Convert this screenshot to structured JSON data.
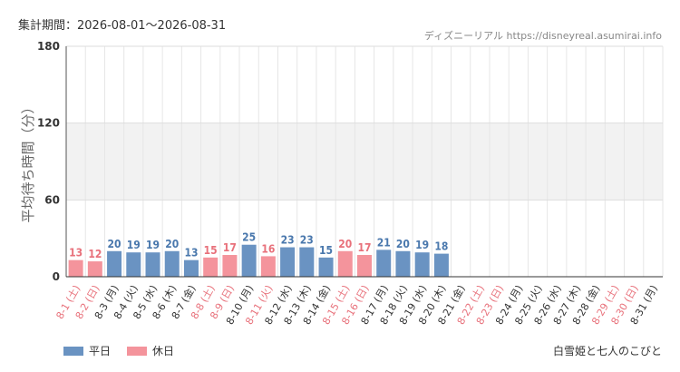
{
  "period_label": "集計期間：2026-08-01～2026-08-31",
  "source_label": "ディズニーリアル https://disneyreal.asumirai.info",
  "attraction_name": "白雪姫と七人のこびと",
  "legend": [
    {
      "label": "平日",
      "color": "#6a93c2"
    },
    {
      "label": "休日",
      "color": "#f4949c"
    }
  ],
  "chart_data": {
    "type": "bar",
    "ylabel": "平均待ち時間（分）",
    "ylim": [
      0,
      180
    ],
    "yticks": [
      0,
      60,
      120,
      180
    ],
    "categories": [
      "8-1 (土)",
      "8-2 (日)",
      "8-3 (月)",
      "8-4 (火)",
      "8-5 (水)",
      "8-6 (木)",
      "8-7 (金)",
      "8-8 (土)",
      "8-9 (日)",
      "8-10 (月)",
      "8-11 (火)",
      "8-12 (水)",
      "8-13 (木)",
      "8-14 (金)",
      "8-15 (土)",
      "8-16 (日)",
      "8-17 (月)",
      "8-18 (火)",
      "8-19 (水)",
      "8-20 (木)",
      "8-21 (金)",
      "8-22 (土)",
      "8-23 (日)",
      "8-24 (月)",
      "8-25 (火)",
      "8-26 (水)",
      "8-27 (木)",
      "8-28 (金)",
      "8-29 (土)",
      "8-30 (日)",
      "8-31 (月)"
    ],
    "values": [
      13,
      12,
      20,
      19,
      19,
      20,
      13,
      15,
      17,
      25,
      16,
      23,
      23,
      15,
      20,
      17,
      21,
      20,
      19,
      18,
      null,
      null,
      null,
      null,
      null,
      null,
      null,
      null,
      null,
      null,
      null
    ],
    "day_type": [
      "holiday",
      "holiday",
      "weekday",
      "weekday",
      "weekday",
      "weekday",
      "weekday",
      "holiday",
      "holiday",
      "weekday",
      "holiday",
      "weekday",
      "weekday",
      "weekday",
      "holiday",
      "holiday",
      "weekday",
      "weekday",
      "weekday",
      "weekday",
      "weekday",
      "holiday",
      "holiday",
      "weekday",
      "weekday",
      "weekday",
      "weekday",
      "weekday",
      "holiday",
      "holiday",
      "weekday"
    ],
    "colors": {
      "weekday_bar": "#6a93c2",
      "holiday_bar": "#f4949c",
      "weekday_text": "#4a78ad",
      "holiday_text": "#e8717b",
      "band": "#f2f2f2",
      "grid": "#e6e6e6"
    },
    "bands": [
      [
        60,
        120
      ]
    ],
    "grid": true
  }
}
